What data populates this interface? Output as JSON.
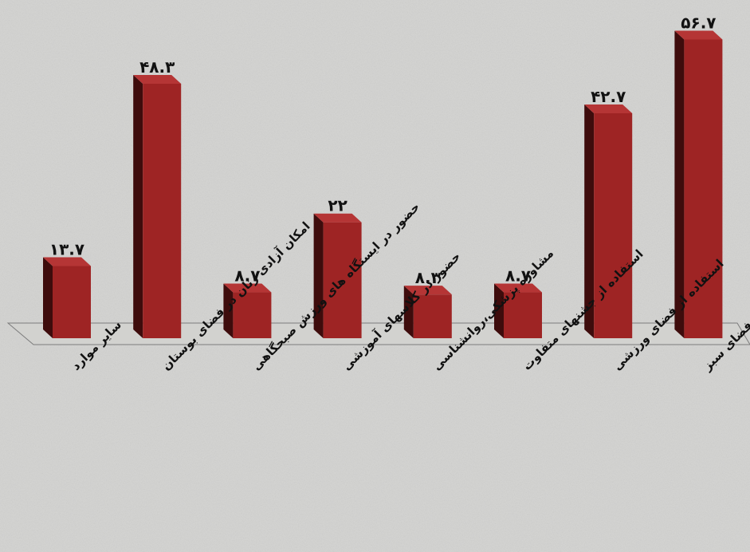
{
  "chart_data": {
    "type": "bar",
    "categories": [
      "سایر موارد",
      "امکان آزادی زنان در فضای بوستان",
      "حضور در ایستگاه های ورزش صبحگاهی",
      "حضور در کلاسهای آموزشی",
      "مشاوره پزشکی،روانشناسی",
      "استفاده از جشنهای متفاوت",
      "استفاده از فضای ورزشی",
      "استفاده از فضای سبز"
    ],
    "values": [
      13.7,
      48.3,
      8.7,
      22,
      8.3,
      8.7,
      42.7,
      56.7
    ],
    "value_labels": [
      "۱۳.۷",
      "۴۸.۳",
      "۸.۷",
      "۲۲",
      "۸.۳",
      "۸.۷",
      "۴۲.۷",
      "۵۶.۷"
    ],
    "title": "",
    "xlabel": "",
    "ylabel": "",
    "ylim": [
      0,
      60
    ],
    "grid": false,
    "legend": "none",
    "colors": {
      "bar_front": "#9e2424",
      "bar_side": "#3e0c0c",
      "bar_top": "#b53535",
      "floor": "#d2d2cf",
      "floor_edge": "#7c7c7c",
      "background": "#d3d3d1"
    }
  }
}
